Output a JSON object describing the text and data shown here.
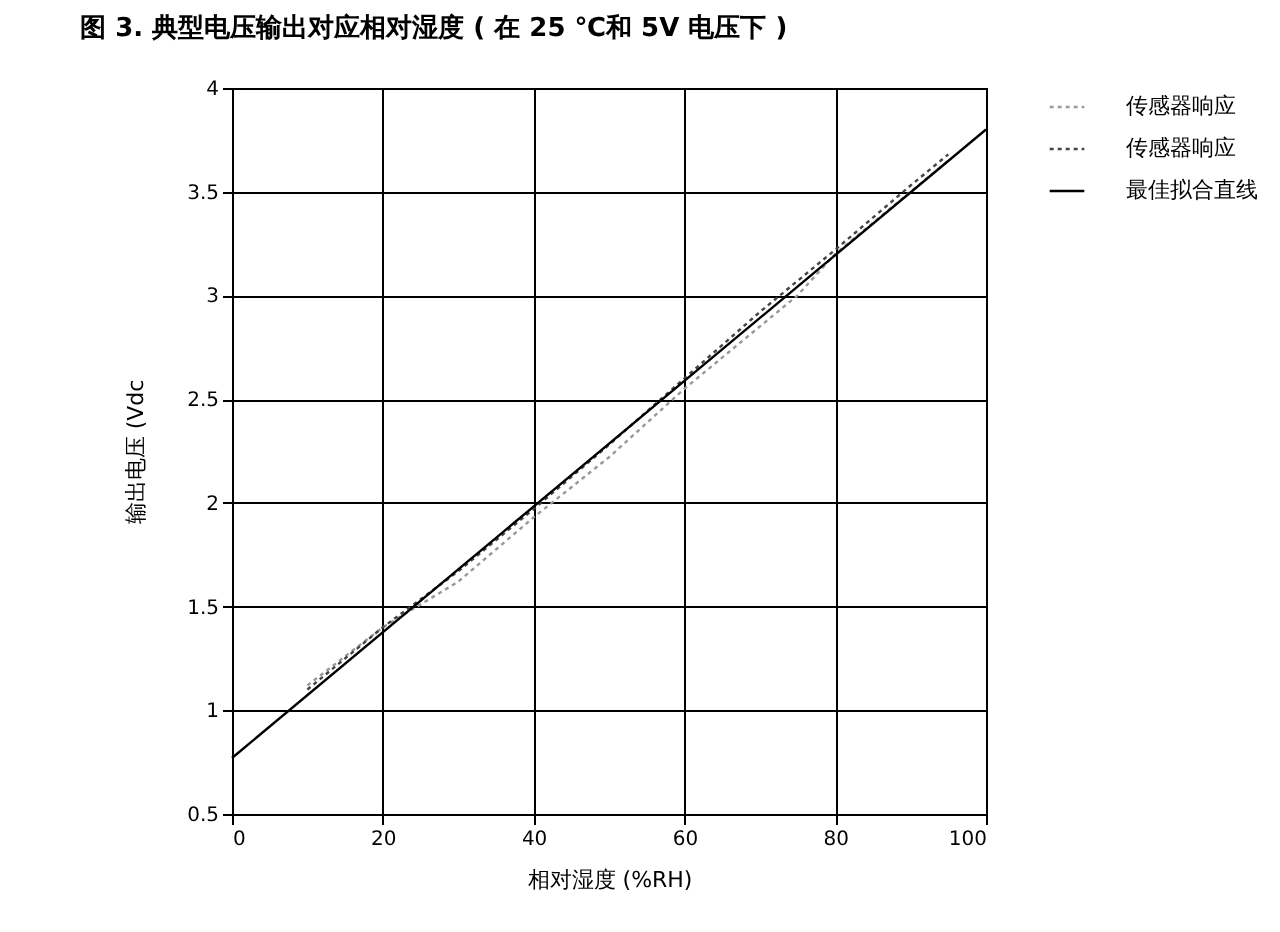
{
  "chart_data": {
    "type": "line",
    "title": "图 3. 典型电压输出对应相对湿度 ( 在 25 ℃和 5V 电压下 )",
    "xlabel": "相对湿度 (%RH)",
    "ylabel": "输出电压 (Vdc",
    "xlim": [
      0,
      100
    ],
    "xticks": [
      0,
      20,
      40,
      60,
      80,
      100
    ],
    "ylim": [
      0.5,
      4
    ],
    "yticks": [
      0.5,
      1,
      1.5,
      2,
      2.5,
      3,
      3.5,
      4
    ],
    "grid": true,
    "legend": "right",
    "marker": "none",
    "series": [
      {
        "name": "传感器响应",
        "color": "#999999",
        "line_style": "dotted",
        "x": [
          10,
          20,
          30,
          40,
          50,
          60,
          70,
          75,
          80,
          90,
          95
        ],
        "values": [
          1.12,
          1.4,
          1.62,
          1.93,
          2.22,
          2.55,
          2.85,
          3.0,
          3.2,
          3.5,
          3.65
        ]
      },
      {
        "name": "传感器响应",
        "color": "#444444",
        "line_style": "dotted",
        "x": [
          10,
          20,
          30,
          40,
          50,
          60,
          70,
          80,
          90,
          95
        ],
        "values": [
          1.1,
          1.4,
          1.67,
          1.97,
          2.28,
          2.6,
          2.92,
          3.22,
          3.53,
          3.68
        ]
      },
      {
        "name": "最佳拟合直线",
        "color": "#000000",
        "line_style": "solid",
        "x": [
          0,
          100
        ],
        "values": [
          0.77,
          3.8
        ]
      }
    ]
  }
}
